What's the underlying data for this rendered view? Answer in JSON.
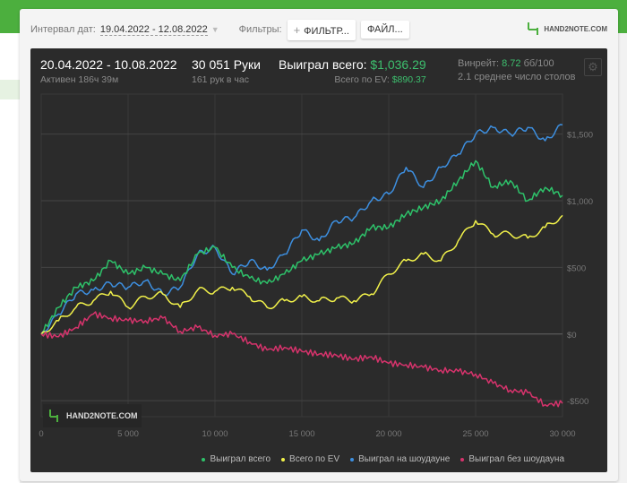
{
  "toolbar": {
    "date_label": "Интервал дат:",
    "date_range": "19.04.2022 - 12.08.2022",
    "filters_label": "Фильтры:",
    "filter_button": "ФИЛЬТР...",
    "file_button": "ФАЙЛ...",
    "logo_text": "HAND2NOTE.COM"
  },
  "stats": {
    "period": "20.04.2022 - 10.08.2022",
    "active": "Активен 186ч 39м",
    "hands": "30 051 Руки",
    "hands_per_hour": "161 рук в час",
    "won_label": "Выиграл всего:",
    "won_value": "$1,036.29",
    "ev_label": "Всего по EV:",
    "ev_value": "$890.37",
    "winrate_label": "Винрейт:",
    "winrate_value": "8.72",
    "winrate_unit": "бб/100",
    "tables": "2.1 среднее число столов"
  },
  "watermark": "HAND2NOTE.COM",
  "colors": {
    "green": "#2ec26a",
    "yellow": "#f2f24a",
    "blue": "#3d8fe0",
    "pink": "#d6336c"
  },
  "chart_data": {
    "type": "line",
    "xlabel": "",
    "ylabel": "",
    "xlim": [
      0,
      30000
    ],
    "ylim": [
      -620,
      1800
    ],
    "x_ticks": [
      0,
      5000,
      10000,
      15000,
      20000,
      25000,
      30000
    ],
    "x_tick_labels": [
      "0",
      "5 000",
      "10 000",
      "15 000",
      "20 000",
      "25 000",
      "30 000"
    ],
    "y_ticks": [
      -500,
      0,
      500,
      1000,
      1500
    ],
    "y_tick_labels": [
      "-$500",
      "$0",
      "$500",
      "$1,000",
      "$1,500"
    ],
    "grid": true,
    "legend_position": "bottom-right",
    "x": [
      0,
      1000,
      2000,
      3000,
      4000,
      5000,
      6000,
      7000,
      8000,
      9000,
      10000,
      11000,
      12000,
      13000,
      14000,
      15000,
      16000,
      17000,
      18000,
      19000,
      20000,
      21000,
      22000,
      23000,
      24000,
      25000,
      26000,
      27000,
      28000,
      29000,
      30000
    ],
    "series": [
      {
        "name": "Выиграл всего",
        "color": "#2ec26a",
        "values": [
          0,
          200,
          350,
          400,
          550,
          450,
          500,
          450,
          400,
          600,
          650,
          500,
          420,
          380,
          450,
          550,
          600,
          650,
          680,
          800,
          800,
          900,
          950,
          1000,
          1150,
          1300,
          1100,
          1150,
          1000,
          1100,
          1040
        ]
      },
      {
        "name": "Всего по EV",
        "color": "#f2f24a",
        "values": [
          0,
          100,
          200,
          250,
          320,
          200,
          280,
          300,
          200,
          330,
          320,
          350,
          280,
          200,
          250,
          280,
          250,
          270,
          250,
          300,
          450,
          550,
          600,
          550,
          700,
          850,
          750,
          750,
          720,
          800,
          890
        ]
      },
      {
        "name": "Выиграл на шоудауне",
        "color": "#3d8fe0",
        "values": [
          0,
          150,
          300,
          330,
          380,
          350,
          400,
          300,
          350,
          600,
          650,
          450,
          550,
          480,
          600,
          780,
          700,
          850,
          870,
          1000,
          1050,
          1250,
          1100,
          1250,
          1350,
          1500,
          1550,
          1500,
          1550,
          1450,
          1570
        ]
      },
      {
        "name": "Выиграл без шоудауна",
        "color": "#d6336c",
        "values": [
          0,
          -20,
          50,
          150,
          120,
          100,
          100,
          120,
          20,
          50,
          -10,
          0,
          -60,
          -120,
          -100,
          -130,
          -150,
          -160,
          -190,
          -170,
          -220,
          -230,
          -250,
          -270,
          -280,
          -300,
          -370,
          -420,
          -440,
          -530,
          -520
        ]
      }
    ]
  }
}
